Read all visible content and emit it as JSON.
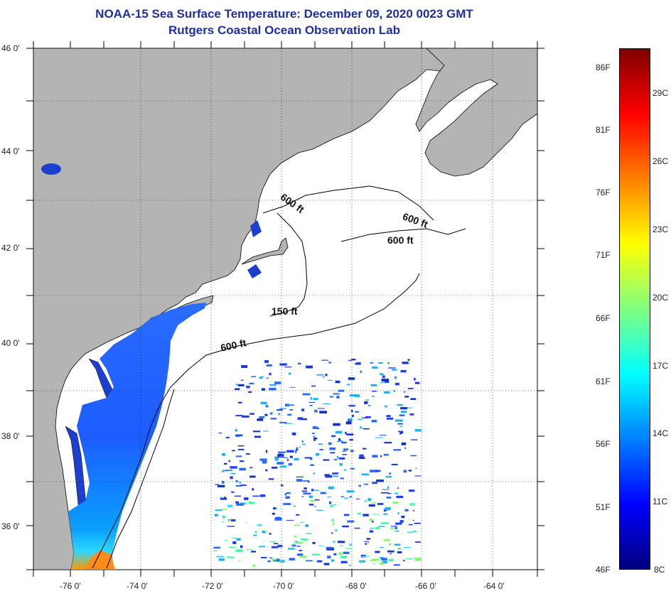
{
  "header": {
    "title": "NOAA-15 Sea Surface Temperature:  December 09, 2020 0023 GMT",
    "subtitle": "Rutgers Coastal Ocean Observation Lab"
  },
  "map": {
    "lat_labels": [
      "46 0'",
      "44 0'",
      "42 0'",
      "40 0'",
      "38 0'",
      "36 0'"
    ],
    "lon_labels": [
      "-76 0'",
      "-74 0'",
      "-72 0'",
      "-70 0'",
      "-68 0'",
      "-66 0'",
      "-64 0'"
    ],
    "contour_labels": [
      "600 ft",
      "600 ft",
      "600 ft",
      "150 ft",
      "600 ft"
    ],
    "colors": {
      "land": "#b4b4b4",
      "ocean_nodata": "#ffffff",
      "coastal_water": "#1e5cff",
      "warm_water": "#ff8c00"
    }
  },
  "colorbar": {
    "fahrenheit_labels": [
      "86F",
      "81F",
      "76F",
      "71F",
      "66F",
      "61F",
      "56F",
      "51F",
      "46F"
    ],
    "celsius_labels": [
      "29C",
      "26C",
      "23C",
      "20C",
      "17C",
      "14C",
      "11C",
      "8C"
    ],
    "gradient": [
      "#00007f",
      "#0000ff",
      "#0080ff",
      "#00ffff",
      "#80ff80",
      "#ffff00",
      "#ff8000",
      "#ff0000",
      "#7f0000"
    ]
  }
}
